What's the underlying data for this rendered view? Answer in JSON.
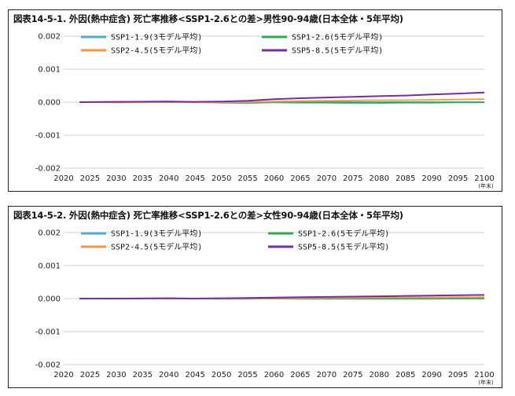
{
  "chart_data": [
    {
      "type": "line",
      "title": "図表14-5-1. 外因(熱中症含) 死亡率推移<SSP1-2.6との差>男性90-94歳(日本全体・5年平均)",
      "x_unit": "(年末)",
      "xlim": [
        2020,
        2100
      ],
      "ylim": [
        -0.002,
        0.002
      ],
      "x_ticks": [
        2020,
        2025,
        2030,
        2035,
        2040,
        2045,
        2050,
        2055,
        2060,
        2065,
        2070,
        2075,
        2080,
        2085,
        2090,
        2095,
        2100
      ],
      "y_ticks": [
        0.002,
        0.001,
        0.0,
        -0.001,
        -0.002
      ],
      "y_tick_labels": [
        "0.002",
        "0.001",
        "0.000",
        "-0.001",
        "-0.002"
      ],
      "grid": true,
      "legend": "top",
      "x": [
        2023,
        2030,
        2040,
        2045,
        2050,
        2055,
        2060,
        2065,
        2070,
        2075,
        2080,
        2085,
        2090,
        2095,
        2100
      ],
      "series": [
        {
          "name": "SSP1-1.9(3モデル平均)",
          "color": "#4bacc6",
          "values": [
            0,
            1e-05,
            2e-05,
            0,
            -2e-05,
            -3e-05,
            -1e-05,
            -2e-05,
            -2e-05,
            -3e-05,
            -3e-05,
            -2e-05,
            -2e-05,
            -1e-05,
            -1e-05
          ]
        },
        {
          "name": "SSP1-2.6(5モデル平均)",
          "color": "#2ea84f",
          "values": [
            0,
            0,
            0,
            0,
            0,
            0,
            0,
            0,
            0,
            0,
            0,
            0,
            0,
            0,
            0
          ]
        },
        {
          "name": "SSP2-4.5(5モデル平均)",
          "color": "#f79646",
          "values": [
            0,
            -1e-05,
            0,
            -1e-05,
            -1e-05,
            0,
            2e-05,
            3e-05,
            4e-05,
            5e-05,
            6e-05,
            6e-05,
            7e-05,
            8e-05,
            9e-05
          ]
        },
        {
          "name": "SSP5-8.5(5モデル平均)",
          "color": "#7030a0",
          "values": [
            0,
            1e-05,
            2e-05,
            1e-05,
            2e-05,
            4e-05,
            9e-05,
            0.00012,
            0.00014,
            0.00016,
            0.00018,
            0.0002,
            0.00023,
            0.00026,
            0.00029
          ]
        }
      ]
    },
    {
      "type": "line",
      "title": "図表14-5-2. 外因(熱中症含) 死亡率推移<SSP1-2.6との差>女性90-94歳(日本全体・5年平均)",
      "x_unit": "(年末)",
      "xlim": [
        2020,
        2100
      ],
      "ylim": [
        -0.002,
        0.002
      ],
      "x_ticks": [
        2020,
        2025,
        2030,
        2035,
        2040,
        2045,
        2050,
        2055,
        2060,
        2065,
        2070,
        2075,
        2080,
        2085,
        2090,
        2095,
        2100
      ],
      "y_ticks": [
        0.002,
        0.001,
        0.0,
        -0.001,
        -0.002
      ],
      "y_tick_labels": [
        "0.002",
        "0.001",
        "0.000",
        "-0.001",
        "-0.002"
      ],
      "grid": true,
      "legend": "top",
      "x": [
        2023,
        2030,
        2040,
        2045,
        2050,
        2055,
        2060,
        2065,
        2070,
        2075,
        2080,
        2085,
        2090,
        2095,
        2100
      ],
      "series": [
        {
          "name": "SSP1-1.9(3モデル平均)",
          "color": "#4bacc6",
          "values": [
            0,
            0,
            1e-05,
            0,
            -1e-05,
            -1e-05,
            0,
            -1e-05,
            -1e-05,
            -1e-05,
            -1e-05,
            -1e-05,
            -1e-05,
            0,
            0
          ]
        },
        {
          "name": "SSP1-2.6(5モデル平均)",
          "color": "#2ea84f",
          "values": [
            0,
            0,
            0,
            0,
            0,
            0,
            0,
            0,
            0,
            0,
            0,
            0,
            0,
            0,
            0
          ]
        },
        {
          "name": "SSP2-4.5(5モデル平均)",
          "color": "#f79646",
          "values": [
            0,
            0,
            0,
            0,
            0,
            0,
            1e-05,
            1e-05,
            2e-05,
            2e-05,
            3e-05,
            3e-05,
            3e-05,
            4e-05,
            4e-05
          ]
        },
        {
          "name": "SSP5-8.5(5モデル平均)",
          "color": "#7030a0",
          "values": [
            0,
            0,
            1e-05,
            0,
            1e-05,
            2e-05,
            3e-05,
            4e-05,
            5e-05,
            6e-05,
            7e-05,
            8e-05,
            9e-05,
            0.0001,
            0.00011
          ]
        }
      ]
    }
  ]
}
